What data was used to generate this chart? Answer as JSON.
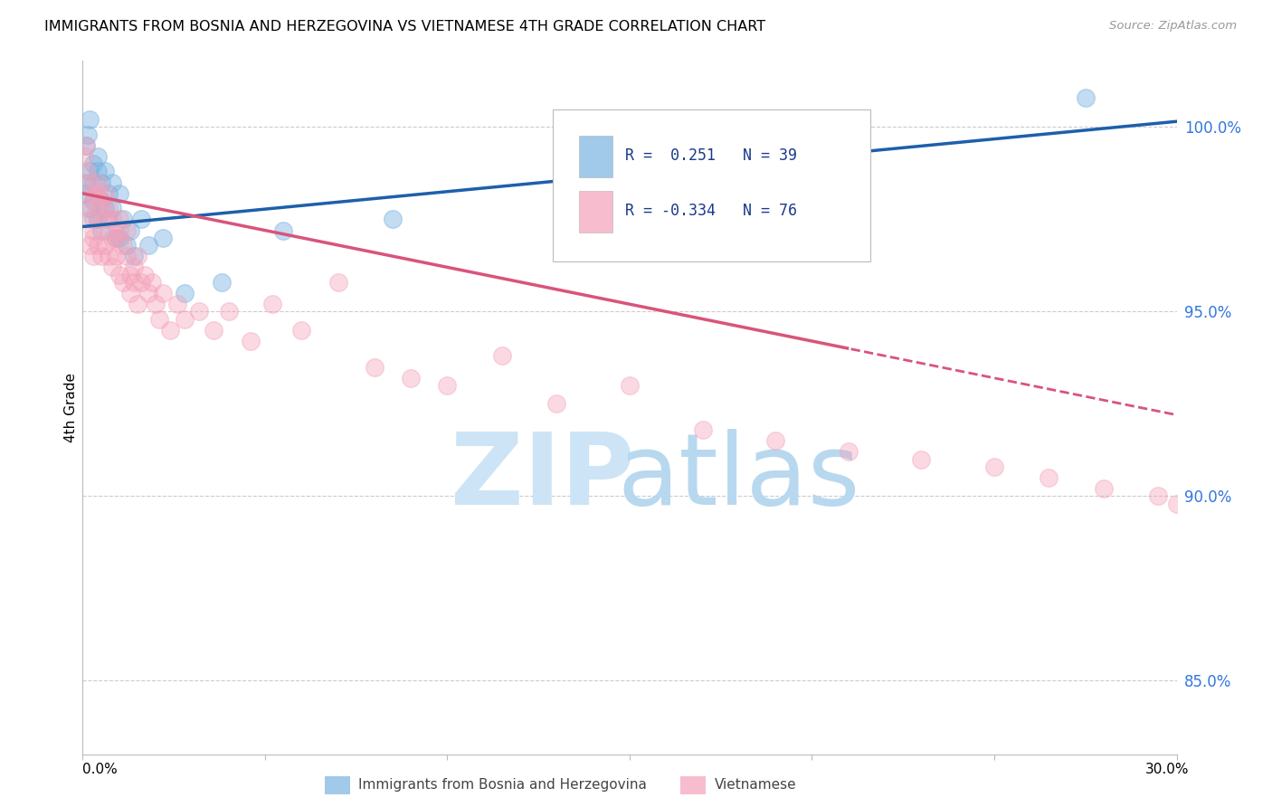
{
  "title": "IMMIGRANTS FROM BOSNIA AND HERZEGOVINA VS VIETNAMESE 4TH GRADE CORRELATION CHART",
  "source": "Source: ZipAtlas.com",
  "series1_label": "Immigrants from Bosnia and Herzegovina",
  "series2_label": "Vietnamese",
  "R1": 0.251,
  "N1": 39,
  "R2": -0.334,
  "N2": 76,
  "blue_color": "#7ab3e0",
  "pink_color": "#f4a0b8",
  "blue_line_color": "#1e5faa",
  "pink_line_color": "#d9547a",
  "xlim": [
    0.0,
    0.3
  ],
  "ylim": [
    83.0,
    101.8
  ],
  "ylabel": "4th Grade",
  "y_tick_positions": [
    85.0,
    90.0,
    95.0,
    100.0
  ],
  "y_tick_labels": [
    "85.0%",
    "90.0%",
    "95.0%",
    "100.0%"
  ],
  "bosnia_x": [
    0.0005,
    0.001,
    0.001,
    0.0015,
    0.002,
    0.002,
    0.002,
    0.003,
    0.003,
    0.003,
    0.003,
    0.004,
    0.004,
    0.004,
    0.005,
    0.005,
    0.005,
    0.006,
    0.006,
    0.007,
    0.007,
    0.008,
    0.008,
    0.009,
    0.01,
    0.01,
    0.011,
    0.012,
    0.013,
    0.014,
    0.016,
    0.018,
    0.022,
    0.028,
    0.038,
    0.055,
    0.085,
    0.135,
    0.275
  ],
  "bosnia_y": [
    98.2,
    99.5,
    98.5,
    99.8,
    98.8,
    97.8,
    100.2,
    98.5,
    97.5,
    99.0,
    98.0,
    98.8,
    97.5,
    99.2,
    98.0,
    97.2,
    98.5,
    97.8,
    98.8,
    97.5,
    98.2,
    97.8,
    98.5,
    97.0,
    98.2,
    97.0,
    97.5,
    96.8,
    97.2,
    96.5,
    97.5,
    96.8,
    97.0,
    95.5,
    95.8,
    97.2,
    97.5,
    99.0,
    100.8
  ],
  "viet_x": [
    0.0005,
    0.001,
    0.001,
    0.001,
    0.002,
    0.002,
    0.002,
    0.003,
    0.003,
    0.003,
    0.003,
    0.003,
    0.004,
    0.004,
    0.004,
    0.004,
    0.005,
    0.005,
    0.005,
    0.006,
    0.006,
    0.006,
    0.007,
    0.007,
    0.007,
    0.008,
    0.008,
    0.008,
    0.009,
    0.009,
    0.01,
    0.01,
    0.01,
    0.011,
    0.011,
    0.012,
    0.012,
    0.013,
    0.013,
    0.014,
    0.014,
    0.015,
    0.015,
    0.016,
    0.017,
    0.018,
    0.019,
    0.02,
    0.021,
    0.022,
    0.024,
    0.026,
    0.028,
    0.032,
    0.036,
    0.04,
    0.046,
    0.052,
    0.06,
    0.07,
    0.08,
    0.09,
    0.1,
    0.115,
    0.13,
    0.15,
    0.17,
    0.19,
    0.21,
    0.23,
    0.25,
    0.265,
    0.28,
    0.295,
    0.3,
    0.305
  ],
  "viet_y": [
    99.2,
    98.8,
    97.8,
    99.5,
    98.5,
    97.5,
    96.8,
    98.2,
    97.2,
    96.5,
    98.0,
    97.0,
    98.5,
    97.5,
    96.8,
    98.2,
    97.8,
    96.5,
    98.0,
    97.5,
    96.8,
    98.2,
    97.2,
    96.5,
    97.8,
    97.0,
    96.2,
    97.5,
    96.5,
    97.0,
    97.2,
    96.0,
    97.5,
    96.8,
    95.8,
    96.5,
    97.2,
    96.0,
    95.5,
    96.2,
    95.8,
    96.5,
    95.2,
    95.8,
    96.0,
    95.5,
    95.8,
    95.2,
    94.8,
    95.5,
    94.5,
    95.2,
    94.8,
    95.0,
    94.5,
    95.0,
    94.2,
    95.2,
    94.5,
    95.8,
    93.5,
    93.2,
    93.0,
    93.8,
    92.5,
    93.0,
    91.8,
    91.5,
    91.2,
    91.0,
    90.8,
    90.5,
    90.2,
    90.0,
    89.8,
    89.5
  ]
}
